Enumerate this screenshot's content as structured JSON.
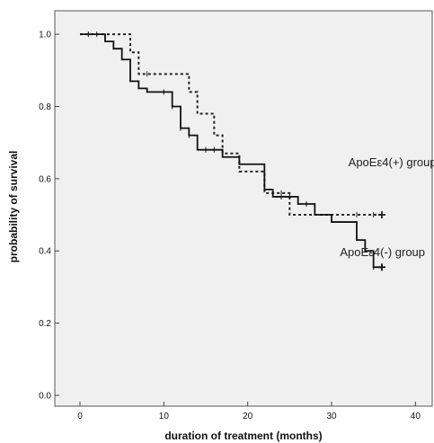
{
  "chart_data": {
    "type": "line",
    "title": "",
    "xlabel": "duration of treatment (months)",
    "ylabel": "probability of survival",
    "xlim": [
      -3,
      42
    ],
    "ylim": [
      -0.03,
      1.065
    ],
    "x_ticks": [
      0,
      10,
      20,
      30,
      40
    ],
    "y_ticks": [
      0.0,
      0.2,
      0.4,
      0.6,
      0.8,
      1.0
    ],
    "x_tick_labels": [
      "0",
      "10",
      "20",
      "30",
      "40"
    ],
    "y_tick_labels": [
      "0.0",
      "0.2",
      "0.4",
      "0.6",
      "0.8",
      "1.0"
    ],
    "grid": false,
    "background": "#f0f0f0",
    "series": [
      {
        "name": "ApoEε4(+) group",
        "style": "dotted",
        "color": "#222222",
        "steps": [
          [
            0,
            1.0
          ],
          [
            6,
            0.95
          ],
          [
            7,
            0.89
          ],
          [
            13,
            0.84
          ],
          [
            14,
            0.78
          ],
          [
            16,
            0.72
          ],
          [
            17,
            0.67
          ],
          [
            19,
            0.62
          ],
          [
            22,
            0.56
          ],
          [
            25,
            0.5
          ],
          [
            36,
            0.5
          ]
        ],
        "censored": [
          [
            2,
            1.0
          ],
          [
            8,
            0.89
          ],
          [
            23,
            0.56
          ],
          [
            24,
            0.56
          ],
          [
            33,
            0.5
          ],
          [
            35,
            0.5
          ],
          [
            36,
            0.5
          ]
        ]
      },
      {
        "name": "ApoEε4(-) group",
        "style": "solid",
        "color": "#111111",
        "steps": [
          [
            0,
            1.0
          ],
          [
            3,
            0.98
          ],
          [
            4,
            0.96
          ],
          [
            5,
            0.93
          ],
          [
            6,
            0.87
          ],
          [
            7,
            0.85
          ],
          [
            8,
            0.84
          ],
          [
            11,
            0.8
          ],
          [
            12,
            0.74
          ],
          [
            13,
            0.72
          ],
          [
            14,
            0.68
          ],
          [
            17,
            0.66
          ],
          [
            19,
            0.64
          ],
          [
            22,
            0.57
          ],
          [
            23,
            0.55
          ],
          [
            26,
            0.53
          ],
          [
            28,
            0.5
          ],
          [
            30,
            0.48
          ],
          [
            33,
            0.43
          ],
          [
            34,
            0.4
          ],
          [
            35,
            0.355
          ],
          [
            36,
            0.355
          ]
        ],
        "censored": [
          [
            1,
            1.0
          ],
          [
            10,
            0.84
          ],
          [
            11,
            0.8
          ],
          [
            12,
            0.74
          ],
          [
            13,
            0.72
          ],
          [
            15,
            0.68
          ],
          [
            16,
            0.68
          ],
          [
            24,
            0.55
          ],
          [
            25,
            0.55
          ],
          [
            27,
            0.53
          ],
          [
            35,
            0.355
          ],
          [
            36,
            0.355
          ]
        ]
      }
    ],
    "annotations": [
      {
        "text": "ApoEε4(+) group",
        "x": 32,
        "y": 0.635
      },
      {
        "text": "ApoEε4(-) group",
        "x": 31,
        "y": 0.385
      }
    ]
  }
}
